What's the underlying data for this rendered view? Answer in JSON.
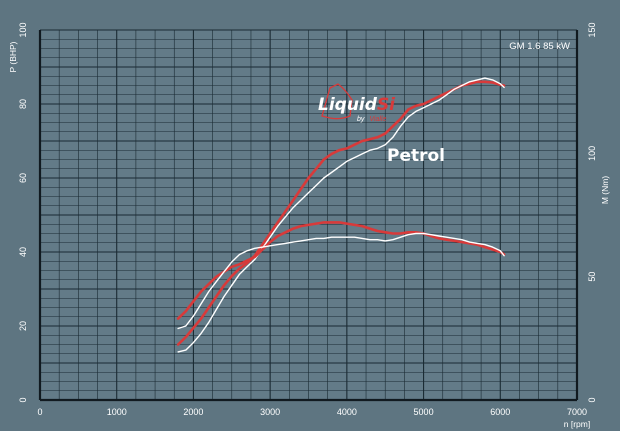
{
  "chart_data": {
    "type": "line",
    "annotation_engine": "GM 1.6 85 kW",
    "annotation_fuel": "Petrol",
    "logo": {
      "main": "Liquid",
      "accent": "Si",
      "by": "by",
      "brand": "Vialle"
    },
    "xlabel": "n [rpm]",
    "ylabel_left": "P (BHP)",
    "ylabel_right": "M (Nm)",
    "xlim": [
      0,
      7000
    ],
    "ylim_left": [
      0,
      100
    ],
    "ylim_right": [
      0,
      150
    ],
    "x_ticks": [
      "0",
      "1000",
      "2000",
      "3000",
      "4000",
      "5000",
      "6000",
      "7000"
    ],
    "y_ticks_left": [
      "0",
      "20",
      "40",
      "60",
      "80",
      "100"
    ],
    "y_ticks_right": [
      "0",
      "50",
      "100",
      "150"
    ],
    "grid": true,
    "colors": {
      "lpg": "#d83a3a",
      "petrol": "#ffffff",
      "background": "#5e7581",
      "grid": "#1a2a33"
    },
    "series": [
      {
        "axis": "left",
        "color": "#d83a3a",
        "x": [
          1800,
          1900,
          2000,
          2100,
          2200,
          2300,
          2400,
          2500,
          2600,
          2700,
          2800,
          2900,
          3000,
          3100,
          3200,
          3300,
          3400,
          3500,
          3600,
          3700,
          3800,
          3900,
          4000,
          4100,
          4200,
          4300,
          4400,
          4500,
          4600,
          4700,
          4800,
          4900,
          5000,
          5100,
          5200,
          5300,
          5400,
          5500,
          5600,
          5700,
          5800,
          5900,
          6000,
          6050
        ],
        "values": [
          15,
          17,
          19.5,
          22,
          25,
          28,
          31,
          33.5,
          35.5,
          37,
          39,
          42,
          45,
          48,
          51,
          54,
          57,
          60,
          62.5,
          65,
          66.5,
          67.5,
          68,
          69,
          70,
          70.5,
          71,
          72,
          74,
          76,
          78.5,
          79.5,
          80,
          81,
          82,
          83,
          84,
          85,
          85.5,
          86,
          86,
          85.8,
          85.2,
          85
        ]
      },
      {
        "axis": "left",
        "color": "#ffffff",
        "x": [
          1800,
          1900,
          2000,
          2100,
          2200,
          2300,
          2400,
          2500,
          2600,
          2700,
          2800,
          2900,
          3000,
          3100,
          3200,
          3300,
          3400,
          3500,
          3600,
          3700,
          3800,
          3900,
          4000,
          4100,
          4200,
          4300,
          4400,
          4500,
          4600,
          4700,
          4800,
          4900,
          5000,
          5100,
          5200,
          5300,
          5400,
          5500,
          5600,
          5700,
          5800,
          5900,
          6000,
          6050
        ],
        "values": [
          13,
          13.5,
          15.5,
          18,
          21,
          24.5,
          28,
          31,
          34,
          36,
          38,
          41,
          44,
          47,
          49.5,
          52,
          54,
          56,
          58,
          60,
          61.5,
          63,
          64.5,
          65.5,
          66.5,
          67.5,
          68,
          69,
          71,
          74,
          76.5,
          78,
          79,
          80,
          81,
          82.5,
          84,
          85,
          86,
          86.5,
          87,
          86.5,
          85.5,
          84.5
        ]
      },
      {
        "axis": "right",
        "color": "#d83a3a",
        "x": [
          1800,
          1900,
          2000,
          2100,
          2200,
          2300,
          2400,
          2500,
          2600,
          2700,
          2800,
          2900,
          3000,
          3100,
          3200,
          3300,
          3400,
          3500,
          3600,
          3700,
          3800,
          3900,
          4000,
          4100,
          4200,
          4300,
          4400,
          4500,
          4600,
          4700,
          4800,
          4900,
          5000,
          5100,
          5200,
          5300,
          5400,
          5500,
          5600,
          5700,
          5800,
          5900,
          6000,
          6050
        ],
        "values": [
          33,
          36,
          40,
          44,
          47,
          50,
          52,
          54,
          55,
          56.5,
          58,
          61,
          64,
          66.5,
          68,
          69.5,
          70.5,
          71,
          71.5,
          72,
          72,
          72,
          71.5,
          71,
          70.5,
          69.5,
          68.5,
          68,
          67.5,
          67.5,
          68,
          68,
          67.5,
          66.5,
          65.5,
          65,
          64.5,
          64,
          63.5,
          63,
          62,
          61,
          60,
          59
        ]
      },
      {
        "axis": "right",
        "color": "#ffffff",
        "x": [
          1800,
          1900,
          2000,
          2100,
          2200,
          2300,
          2400,
          2500,
          2600,
          2700,
          2800,
          2900,
          3000,
          3100,
          3200,
          3300,
          3400,
          3500,
          3600,
          3700,
          3800,
          3900,
          4000,
          4100,
          4200,
          4300,
          4400,
          4500,
          4600,
          4700,
          4800,
          4900,
          5000,
          5100,
          5200,
          5300,
          5400,
          5500,
          5600,
          5700,
          5800,
          5900,
          6000,
          6050
        ],
        "values": [
          29,
          30,
          34,
          39,
          44,
          48,
          52,
          56,
          59,
          60.5,
          61.5,
          62,
          62.5,
          63,
          63.5,
          64,
          64.5,
          65,
          65.5,
          65.5,
          66,
          66,
          66,
          66,
          65.5,
          65,
          65,
          64.5,
          65,
          66,
          67,
          67.5,
          67.5,
          67,
          66.5,
          66,
          65.5,
          65,
          64,
          63.5,
          63,
          62,
          60.5,
          58.5
        ]
      }
    ]
  }
}
